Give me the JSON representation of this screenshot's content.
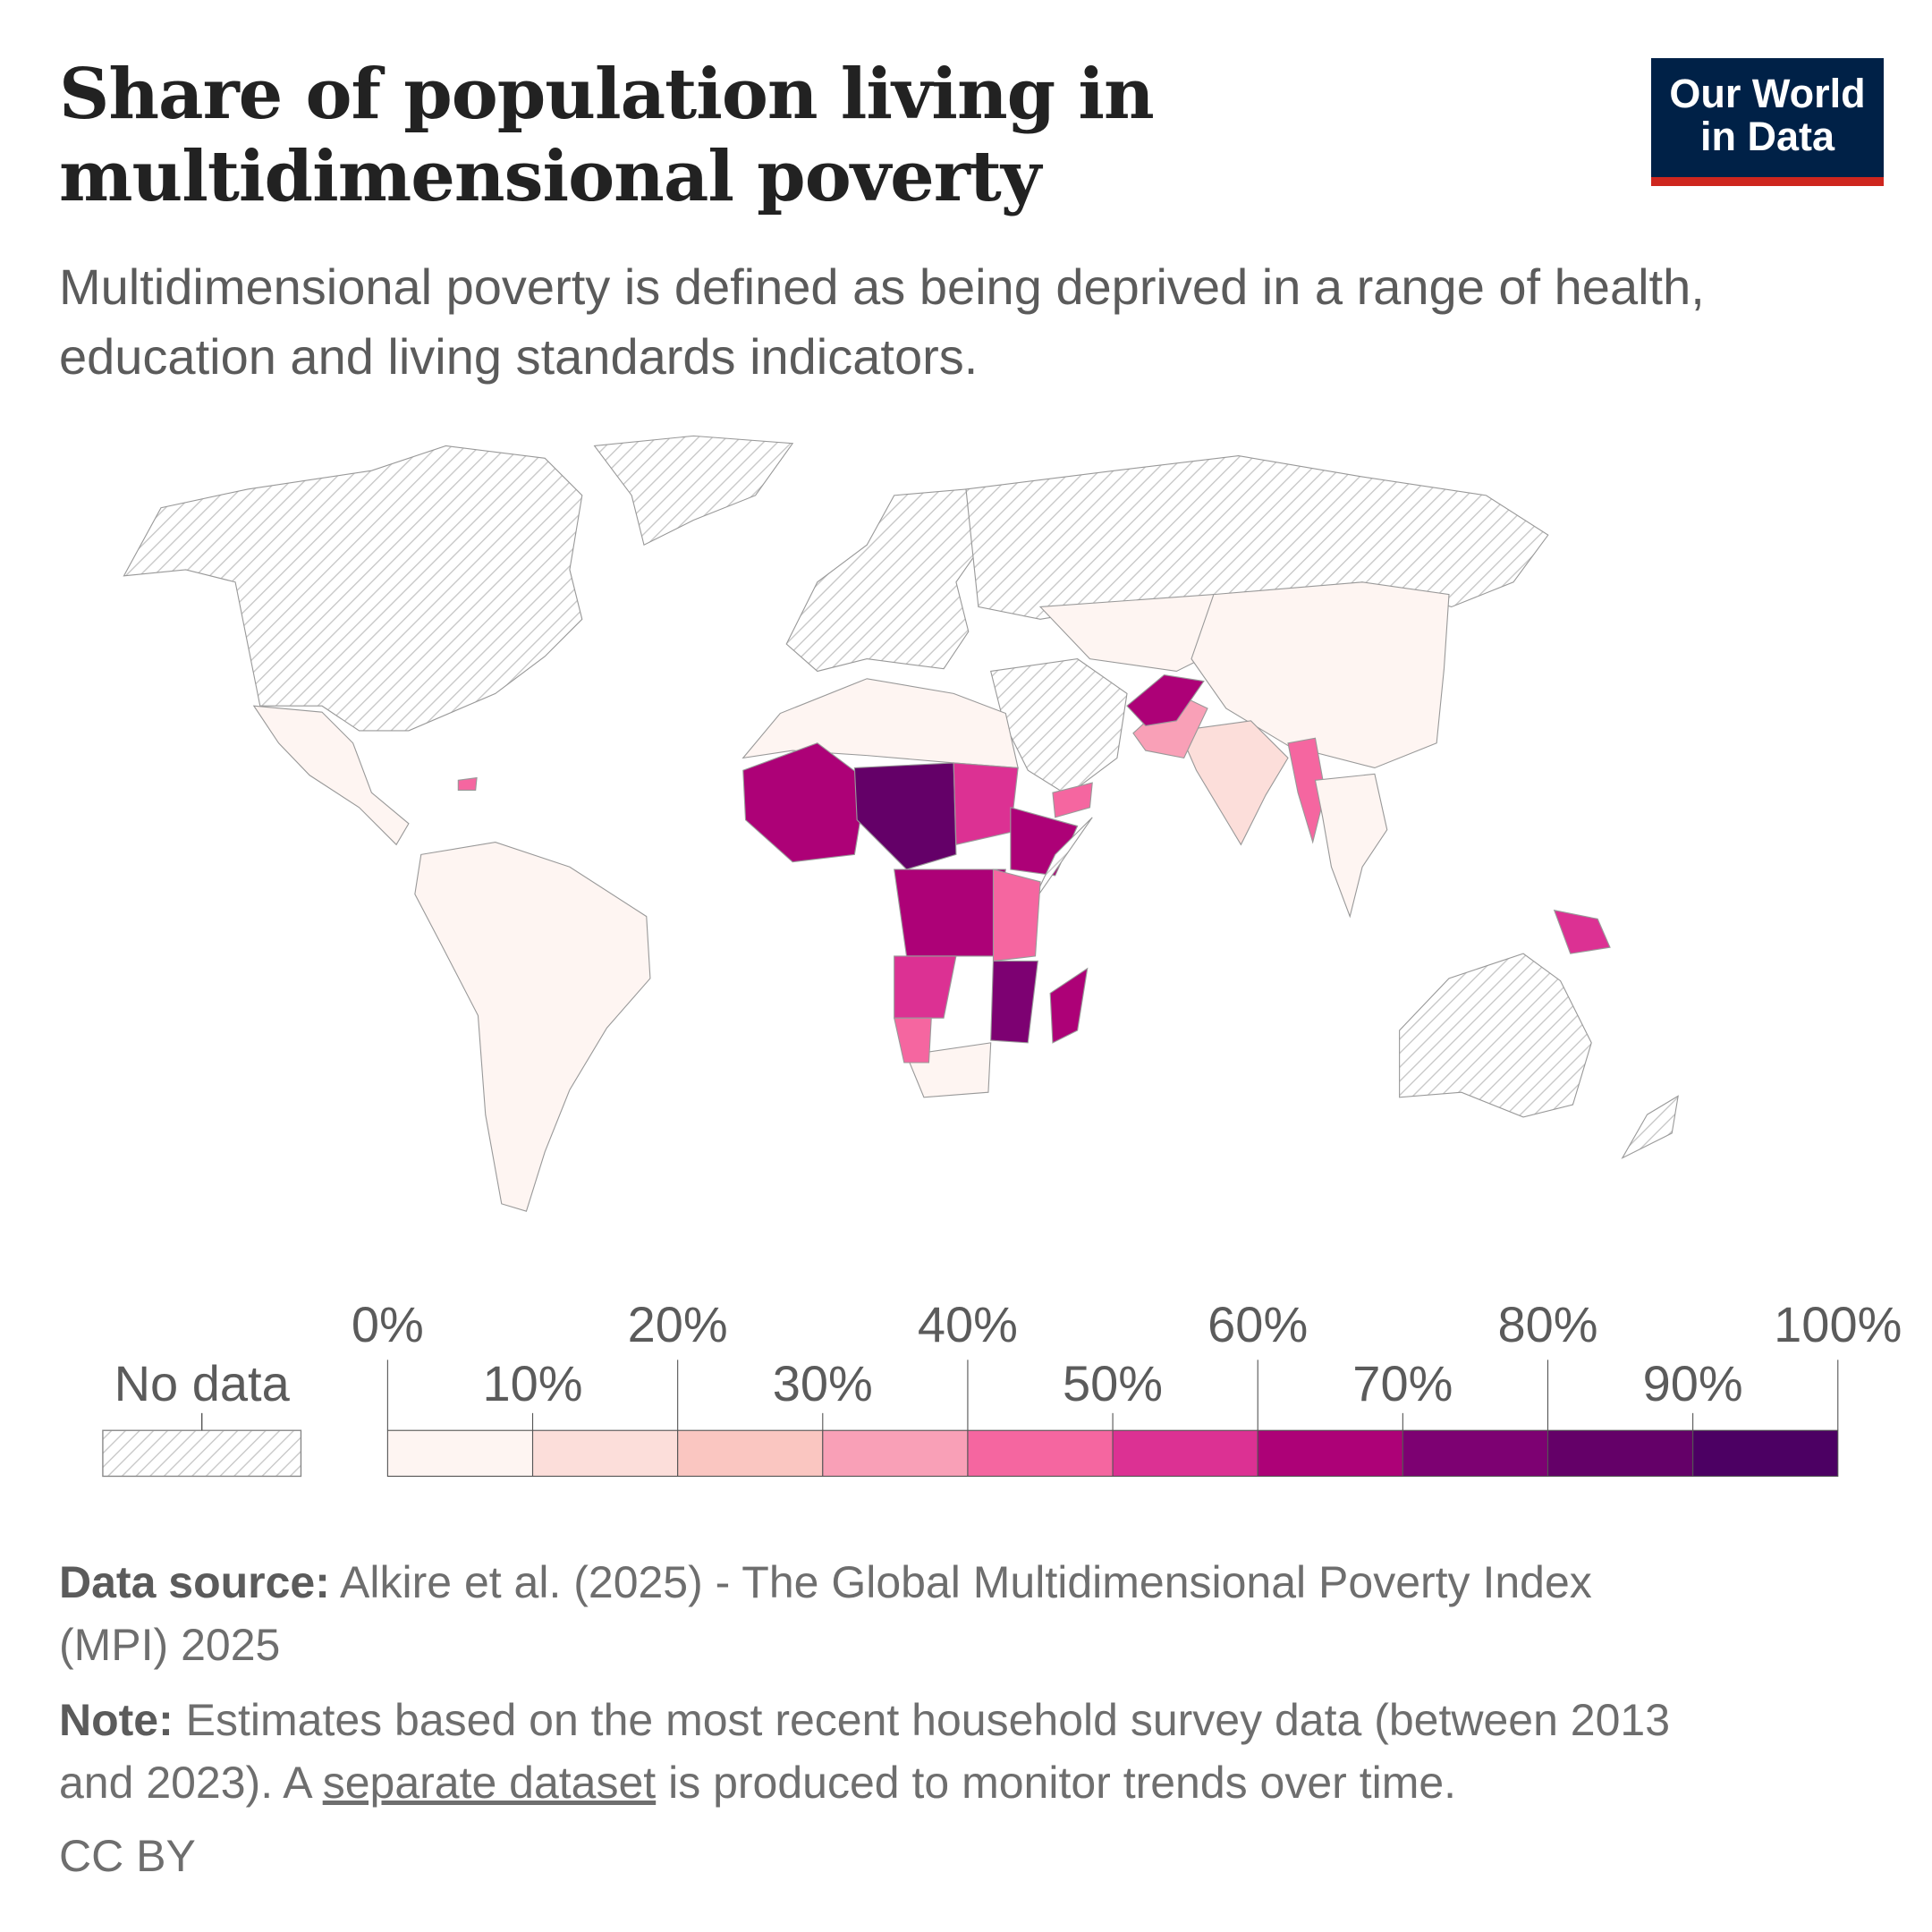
{
  "header": {
    "title_line1": "Share of population living in",
    "title_line2": "multidimensional poverty",
    "subtitle": "Multidimensional poverty is defined as being deprived in a range of health, education and living standards indicators.",
    "logo_line1": "Our World",
    "logo_line2": "in Data",
    "logo_colors": {
      "background": "#002147",
      "underline": "#ce261e"
    }
  },
  "chart_data": {
    "type": "choropleth-map",
    "title": "Share of population living in multidimensional poverty",
    "legend": {
      "no_data_label": "No data",
      "bins": [
        0,
        10,
        20,
        30,
        40,
        50,
        60,
        70,
        80,
        90,
        100
      ],
      "top_labels": [
        "0%",
        "20%",
        "40%",
        "60%",
        "80%",
        "100%"
      ],
      "bottom_labels": [
        "10%",
        "30%",
        "50%",
        "70%",
        "90%"
      ],
      "colors": [
        "#fef5f2",
        "#fcdeda",
        "#fac6c1",
        "#f9a0b7",
        "#f566a0",
        "#dc3193",
        "#ad0177",
        "#7d0172",
        "#640068",
        "#4c0063"
      ]
    },
    "regions": [
      {
        "name": "North America",
        "value": null
      },
      {
        "name": "Greenland",
        "value": null
      },
      {
        "name": "Mexico & Central America",
        "value": 5
      },
      {
        "name": "South America",
        "value": 3
      },
      {
        "name": "Europe",
        "value": null
      },
      {
        "name": "Russia",
        "value": null
      },
      {
        "name": "Middle East",
        "value": null
      },
      {
        "name": "Central Asia",
        "value": 1
      },
      {
        "name": "China",
        "value": 2
      },
      {
        "name": "India",
        "value": 16
      },
      {
        "name": "Pakistan",
        "value": 38
      },
      {
        "name": "Afghanistan",
        "value": 65
      },
      {
        "name": "Myanmar",
        "value": 40
      },
      {
        "name": "Southeast Asia",
        "value": 5
      },
      {
        "name": "Australia",
        "value": null
      },
      {
        "name": "New Zealand",
        "value": null
      },
      {
        "name": "Papua New Guinea",
        "value": 57
      },
      {
        "name": "North Africa",
        "value": 2
      },
      {
        "name": "West Africa",
        "value": 62
      },
      {
        "name": "Niger & Chad",
        "value": 88
      },
      {
        "name": "Sudan",
        "value": 52
      },
      {
        "name": "Ethiopia",
        "value": 68
      },
      {
        "name": "Somalia",
        "value": null
      },
      {
        "name": "Central Africa",
        "value": 65
      },
      {
        "name": "East Africa",
        "value": 45
      },
      {
        "name": "Angola",
        "value": 52
      },
      {
        "name": "Mozambique",
        "value": 70
      },
      {
        "name": "Southern Africa",
        "value": 8
      },
      {
        "name": "Namibia",
        "value": 42
      },
      {
        "name": "Madagascar",
        "value": 68
      },
      {
        "name": "Yemen",
        "value": 40
      },
      {
        "name": "Haiti",
        "value": 42
      }
    ]
  },
  "footer": {
    "source_label": "Data source:",
    "source_text": " Alkire et al. (2025) - The Global Multidimensional Poverty Index",
    "source_text2": "(MPI) 2025",
    "note_label": "Note:",
    "note_text": " Estimates based on the most recent household survey data (between 2013",
    "note_text2a": "and 2023). A ",
    "note_link": "separate dataset",
    "note_text2b": " is produced to monitor trends over time.",
    "license": "CC BY"
  }
}
